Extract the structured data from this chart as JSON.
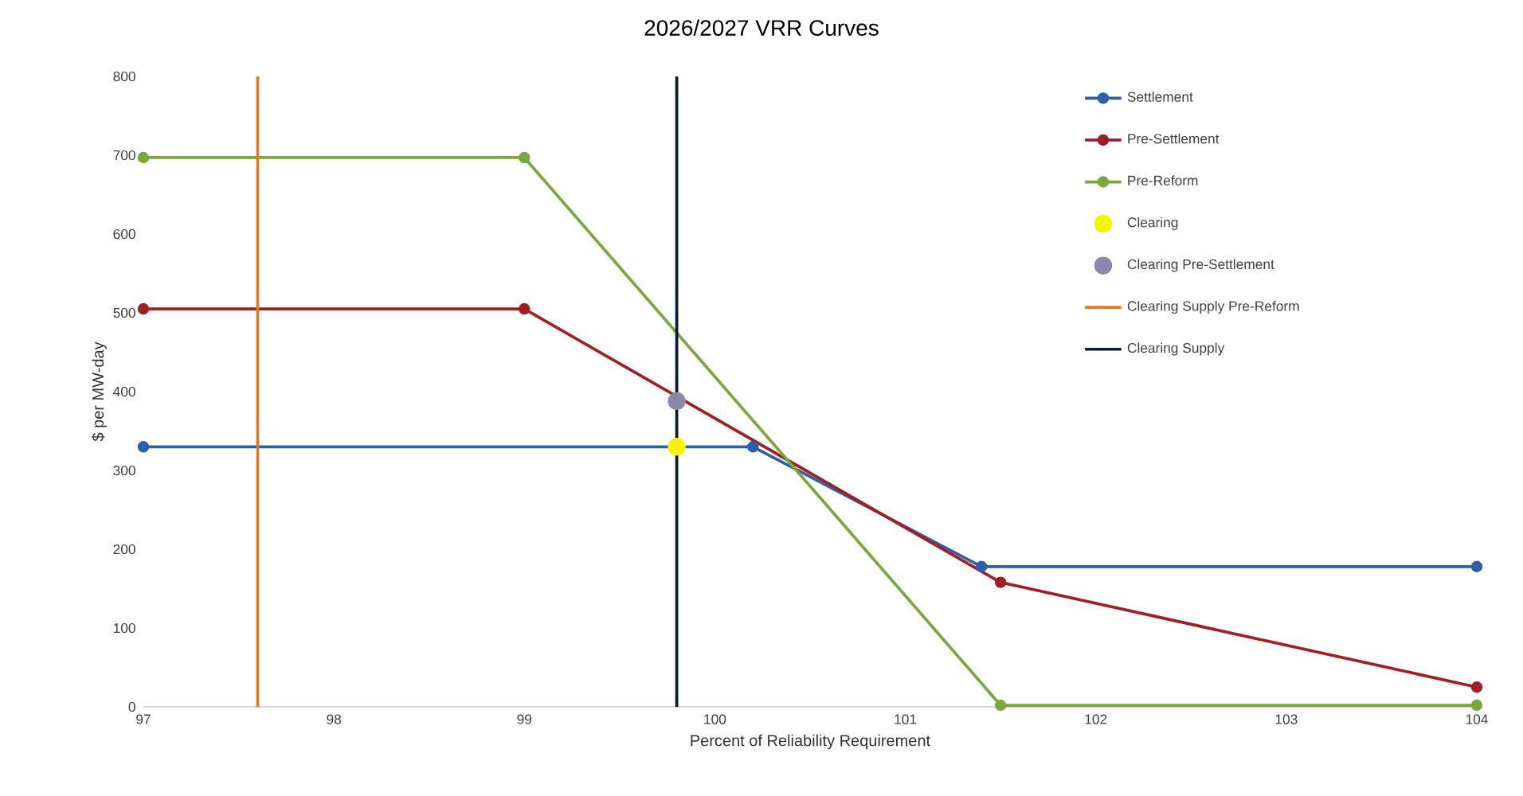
{
  "chart_data": {
    "type": "line",
    "title": "2026/2027 VRR Curves",
    "xlabel": "Percent of Reliability Requirement",
    "ylabel": "$ per MW-day",
    "xlim": [
      97,
      104
    ],
    "xticks": [
      97,
      98,
      99,
      100,
      101,
      102,
      103,
      104
    ],
    "ylim": [
      0,
      800
    ],
    "yticks": [
      0,
      100,
      200,
      300,
      400,
      500,
      600,
      700,
      800
    ],
    "grid": false,
    "legend": "top right",
    "series": [
      {
        "name": "Settlement",
        "marker": "circle",
        "color": "#2e5fa8",
        "x": [
          97,
          100.2,
          101.4,
          104
        ],
        "values": [
          330,
          330,
          178,
          178
        ]
      },
      {
        "name": "Pre-Settlement",
        "marker": "circle",
        "color": "#a31e22",
        "x": [
          97,
          99,
          101.5,
          104
        ],
        "values": [
          505,
          505,
          158,
          25
        ]
      },
      {
        "name": "Pre-Reform",
        "marker": "circle",
        "color": "#7aa83a",
        "x": [
          97,
          99,
          101.5,
          104
        ],
        "values": [
          697,
          697,
          2,
          2
        ]
      },
      {
        "name": "Clearing",
        "type": "scatter",
        "marker": "circle",
        "color": "#f5f500",
        "x": [
          99.8
        ],
        "values": [
          330
        ]
      },
      {
        "name": "Clearing Pre-Settlement",
        "type": "scatter",
        "marker": "circle",
        "color": "#8b87a8",
        "x": [
          99.8
        ],
        "values": [
          388
        ]
      },
      {
        "name": "Clearing Supply Pre-Reform",
        "marker": "none",
        "color": "#e07b24",
        "x": [
          97.6,
          97.6
        ],
        "values": [
          0,
          800
        ]
      },
      {
        "name": "Clearing Supply",
        "marker": "none",
        "color": "#0a1a33",
        "x": [
          99.8,
          99.8
        ],
        "values": [
          0,
          800
        ]
      }
    ]
  }
}
